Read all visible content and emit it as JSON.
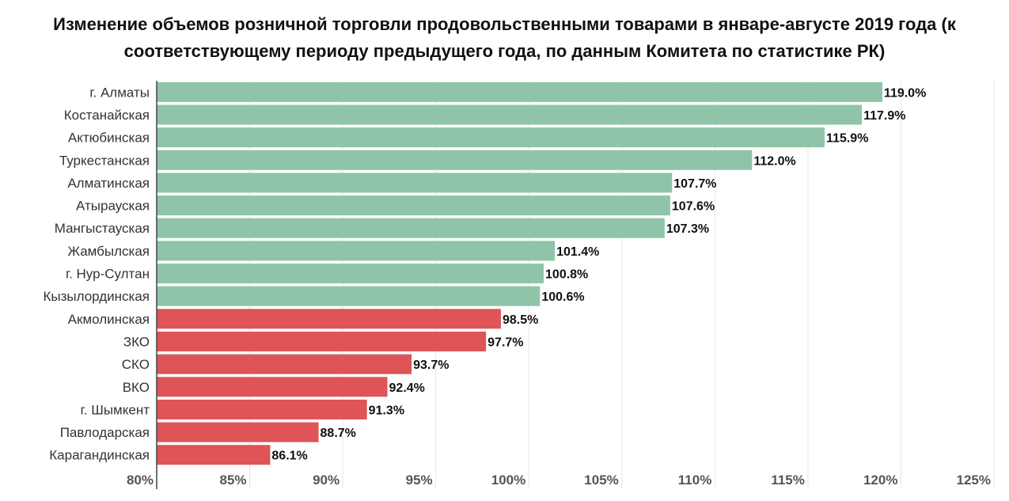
{
  "chart_data": {
    "type": "bar",
    "orientation": "horizontal",
    "title": "Изменение объемов розничной торговли продовольственными товарами в январе-августе 2019 года (к соответствующему периоду предыдущего года, по данным Комитета по статистике РК)",
    "categories": [
      "г. Алматы",
      "Костанайская",
      "Актюбинская",
      "Туркестанская",
      "Алматинская",
      "Атырауская",
      "Мангыстауская",
      "Жамбылская",
      "г. Нур-Султан",
      "Кызылординская",
      "Акмолинская",
      "ЗКО",
      "СКО",
      "ВКО",
      "г. Шымкент",
      "Павлодарская",
      "Карагандинская"
    ],
    "values": [
      119.0,
      117.9,
      115.9,
      112.0,
      107.7,
      107.6,
      107.3,
      101.4,
      100.8,
      100.6,
      98.5,
      97.7,
      93.7,
      92.4,
      91.3,
      88.7,
      86.1
    ],
    "value_labels": [
      "119.0%",
      "117.9%",
      "115.9%",
      "112.0%",
      "107.7%",
      "107.6%",
      "107.3%",
      "101.4%",
      "100.8%",
      "100.6%",
      "98.5%",
      "97.7%",
      "93.7%",
      "92.4%",
      "91.3%",
      "88.7%",
      "86.1%"
    ],
    "xlim": [
      80,
      125
    ],
    "xticks": [
      80,
      85,
      90,
      95,
      100,
      105,
      110,
      115,
      120,
      125
    ],
    "xtick_labels": [
      "80%",
      "85%",
      "90%",
      "95%",
      "100%",
      "105%",
      "110%",
      "115%",
      "120%",
      "125%"
    ],
    "xlabel": "",
    "ylabel": "",
    "grid": true,
    "threshold": 100,
    "colors": {
      "above": "#8fc4a8",
      "below": "#de5457"
    }
  }
}
